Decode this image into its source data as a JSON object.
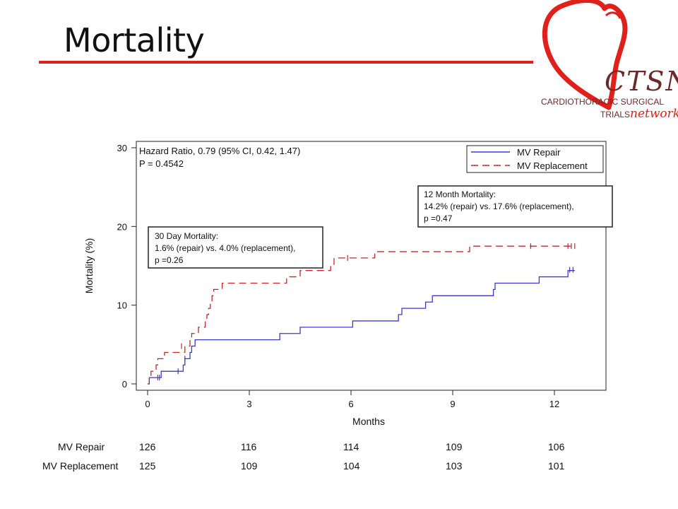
{
  "slide": {
    "title": "Mortality"
  },
  "logo": {
    "name": "CTSN",
    "line1": "CARDIOTHORACIC SURGICAL",
    "line2": "TRIALS",
    "line3": "network",
    "heart_color": "#e0201b",
    "text_color": "#6b2a2a"
  },
  "colors": {
    "accent": "#e0201b",
    "repair": "#3b3bc8",
    "replacement": "#c0282e"
  },
  "chart_data": {
    "type": "line",
    "xlabel": "Months",
    "ylabel": "Mortality (%)",
    "xlim": [
      0,
      13.5
    ],
    "ylim": [
      0,
      30
    ],
    "xticks": [
      0,
      3,
      6,
      9,
      12
    ],
    "yticks": [
      0,
      10,
      20,
      30
    ],
    "grid": false,
    "legend_position": "top-right",
    "annotations": {
      "hazard": [
        "Hazard Ratio, 0.79 (95% CI, 0.42, 1.47)",
        "P = 0.4542"
      ],
      "day30": [
        "30 Day Mortality:",
        "1.6% (repair) vs. 4.0% (replacement),",
        "p =0.26"
      ],
      "month12": [
        "12 Month Mortality:",
        "14.2% (repair) vs. 17.6% (replacement),",
        "p =0.47"
      ]
    },
    "series": [
      {
        "name": "MV Repair",
        "color": "#3b3bc8",
        "dash": "solid",
        "steps": [
          [
            0,
            0
          ],
          [
            0.05,
            0.8
          ],
          [
            0.4,
            1.6
          ],
          [
            1.05,
            2.4
          ],
          [
            1.1,
            3.2
          ],
          [
            1.25,
            4.0
          ],
          [
            1.3,
            4.8
          ],
          [
            1.4,
            5.6
          ],
          [
            3.9,
            6.4
          ],
          [
            4.5,
            7.2
          ],
          [
            6.05,
            8.0
          ],
          [
            7.4,
            8.8
          ],
          [
            7.5,
            9.6
          ],
          [
            8.2,
            10.4
          ],
          [
            8.4,
            11.2
          ],
          [
            10.2,
            12.0
          ],
          [
            10.25,
            12.8
          ],
          [
            11.55,
            13.6
          ],
          [
            12.4,
            14.4
          ],
          [
            12.6,
            14.4
          ]
        ],
        "censors": [
          [
            0.35,
            0.8
          ],
          [
            0.9,
            1.6
          ],
          [
            1.1,
            3.2
          ],
          [
            12.45,
            14.5
          ],
          [
            12.55,
            14.5
          ]
        ]
      },
      {
        "name": "MV Replacement",
        "color": "#c0282e",
        "dash": "dashed",
        "steps": [
          [
            0,
            0
          ],
          [
            0.05,
            0.8
          ],
          [
            0.1,
            1.6
          ],
          [
            0.25,
            2.4
          ],
          [
            0.3,
            3.2
          ],
          [
            0.5,
            4.0
          ],
          [
            1.1,
            4.8
          ],
          [
            1.25,
            5.6
          ],
          [
            1.3,
            6.4
          ],
          [
            1.5,
            7.2
          ],
          [
            1.7,
            8.0
          ],
          [
            1.75,
            8.8
          ],
          [
            1.8,
            9.6
          ],
          [
            1.85,
            10.4
          ],
          [
            1.9,
            11.2
          ],
          [
            1.95,
            12.0
          ],
          [
            2.2,
            12.8
          ],
          [
            4.1,
            13.6
          ],
          [
            4.5,
            14.4
          ],
          [
            5.4,
            15.2
          ],
          [
            5.5,
            16.0
          ],
          [
            6.7,
            16.8
          ],
          [
            9.5,
            17.5
          ],
          [
            12.6,
            17.5
          ]
        ],
        "censors": [
          [
            0.3,
            0.8
          ],
          [
            1.0,
            4.8
          ],
          [
            5.9,
            16.0
          ],
          [
            11.3,
            17.5
          ],
          [
            12.4,
            17.5
          ],
          [
            12.5,
            17.5
          ],
          [
            12.6,
            17.5
          ]
        ]
      }
    ],
    "risk_table": {
      "times": [
        0,
        3,
        6,
        9,
        12
      ],
      "rows": [
        {
          "label": "MV Repair",
          "values": [
            "126",
            "116",
            "114",
            "109",
            "106"
          ]
        },
        {
          "label": "MV Replacement",
          "values": [
            "125",
            "109",
            "104",
            "103",
            "101"
          ]
        }
      ]
    }
  }
}
